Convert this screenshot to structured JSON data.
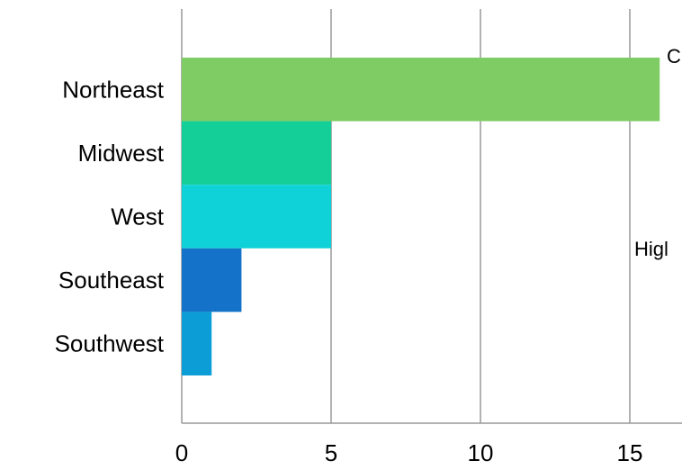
{
  "chart_data": {
    "type": "bar",
    "orientation": "horizontal",
    "categories": [
      "Northeast",
      "Midwest",
      "West",
      "Southeast",
      "Southwest"
    ],
    "values": [
      16,
      5,
      5,
      2,
      1
    ],
    "colors": [
      "#7ecc63",
      "#14cf98",
      "#0fd2d8",
      "#1472c8",
      "#0c9dd6"
    ],
    "xlim": [
      0,
      17
    ],
    "xticks": [
      0,
      5,
      10,
      15
    ],
    "grid": true,
    "annotations": [
      "C",
      "Higl"
    ]
  }
}
